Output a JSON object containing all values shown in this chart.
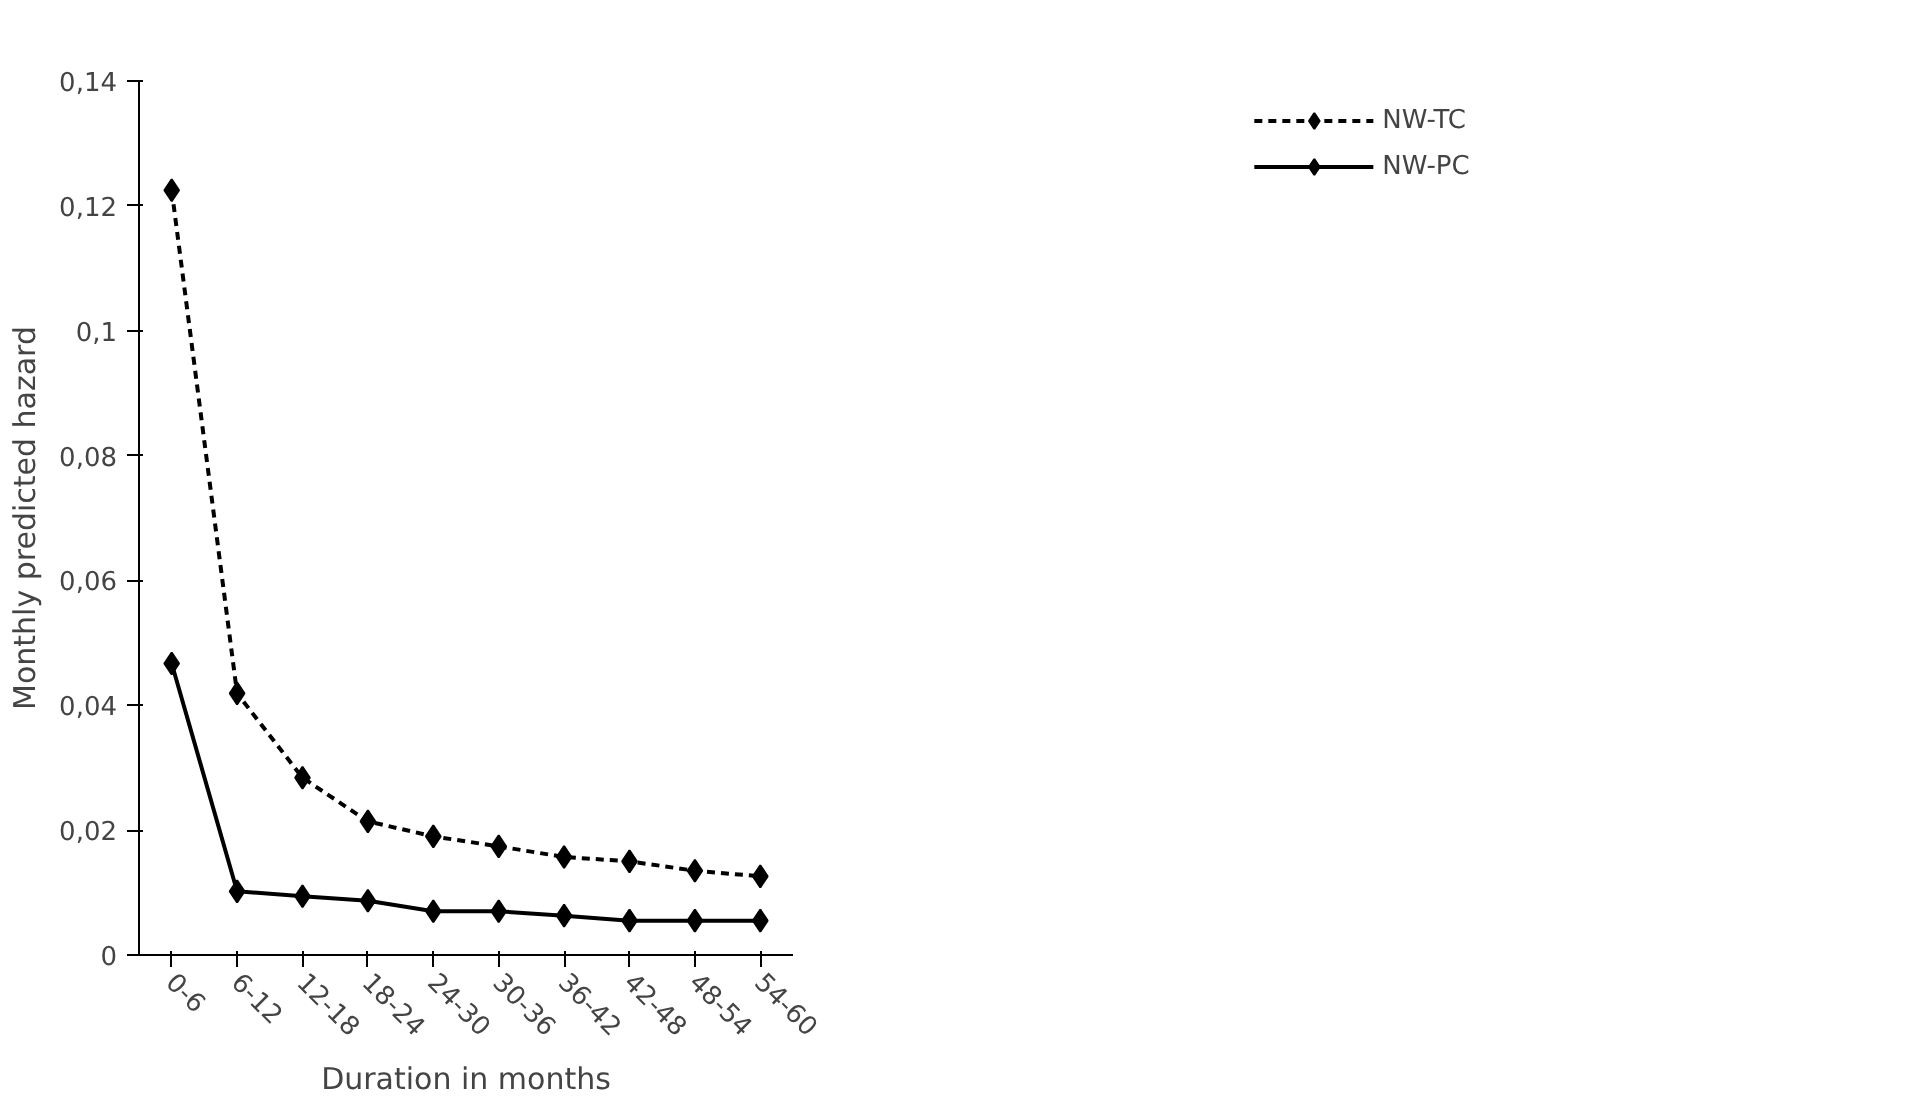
{
  "chart_data": {
    "type": "line",
    "xlabel": "Duration in months",
    "ylabel": "Monthly predicted hazard",
    "categories": [
      "0-6",
      "6-12",
      "12-18",
      "18-24",
      "24-30",
      "30-36",
      "36-42",
      "42-48",
      "48-54",
      "54-60"
    ],
    "series": [
      {
        "name": "NW-TC",
        "color": "#000000",
        "line_style": "dashed",
        "values": [
          0.1225,
          0.0419,
          0.0284,
          0.0214,
          0.019,
          0.0174,
          0.0157,
          0.015,
          0.0135,
          0.0126
        ]
      },
      {
        "name": "NW-PC",
        "color": "#000000",
        "line_style": "solid",
        "values": [
          0.0467,
          0.0102,
          0.0094,
          0.0087,
          0.007,
          0.007,
          0.0063,
          0.0055,
          0.0055,
          0.0055
        ]
      }
    ],
    "ylim": [
      0,
      0.14
    ],
    "yticks": [
      {
        "value": 0,
        "label": "0"
      },
      {
        "value": 0.02,
        "label": "0,02"
      },
      {
        "value": 0.04,
        "label": "0,04"
      },
      {
        "value": 0.06,
        "label": "0,06"
      },
      {
        "value": 0.08,
        "label": "0,08"
      },
      {
        "value": 0.1,
        "label": "0,1"
      },
      {
        "value": 0.12,
        "label": "0,12"
      },
      {
        "value": 0.14,
        "label": "0,14"
      }
    ],
    "grid": false,
    "legend": "top right",
    "marker": "diamond"
  }
}
